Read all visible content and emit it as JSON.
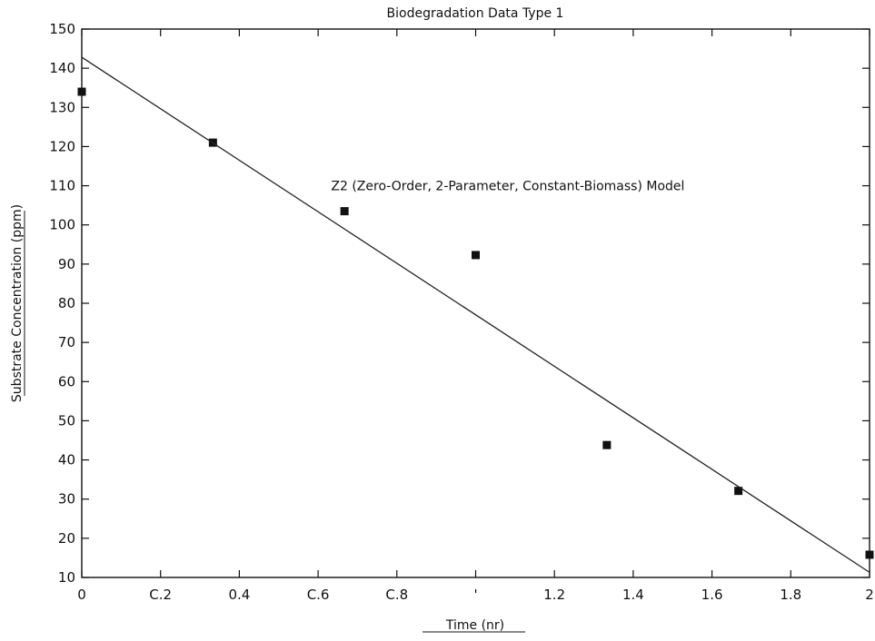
{
  "chart_data": {
    "type": "scatter",
    "title": "Biodegradation Data Type 1",
    "xlabel": "Time (nr)",
    "ylabel": "Substrate Concentration (ppm)",
    "xlim": [
      0,
      2
    ],
    "ylim": [
      10,
      150
    ],
    "x_ticks": [
      {
        "value": 0,
        "label": "0"
      },
      {
        "value": 0.2,
        "label": "C.2"
      },
      {
        "value": 0.4,
        "label": "0.4"
      },
      {
        "value": 0.6,
        "label": "C.6"
      },
      {
        "value": 0.8,
        "label": "C.8"
      },
      {
        "value": 1.0,
        "label": "'"
      },
      {
        "value": 1.2,
        "label": "1.2"
      },
      {
        "value": 1.4,
        "label": "1.4"
      },
      {
        "value": 1.6,
        "label": "1.6"
      },
      {
        "value": 1.8,
        "label": "1.8"
      },
      {
        "value": 2.0,
        "label": "2"
      }
    ],
    "y_ticks": [
      {
        "value": 10,
        "label": "10"
      },
      {
        "value": 20,
        "label": "20"
      },
      {
        "value": 30,
        "label": "30"
      },
      {
        "value": 40,
        "label": "40"
      },
      {
        "value": 50,
        "label": "50"
      },
      {
        "value": 60,
        "label": "60"
      },
      {
        "value": 70,
        "label": "70"
      },
      {
        "value": 80,
        "label": "80"
      },
      {
        "value": 90,
        "label": "90"
      },
      {
        "value": 100,
        "label": "100"
      },
      {
        "value": 110,
        "label": "110"
      },
      {
        "value": 120,
        "label": "120"
      },
      {
        "value": 130,
        "label": "130"
      },
      {
        "value": 140,
        "label": "140"
      },
      {
        "value": 150,
        "label": "150"
      }
    ],
    "grid": false,
    "series": [
      {
        "kind": "points",
        "marker": "square",
        "color": "#111111",
        "points": [
          {
            "x": 0,
            "y": 134
          },
          {
            "x": 0.333,
            "y": 121
          },
          {
            "x": 0.667,
            "y": 103.5
          },
          {
            "x": 1.0,
            "y": 92.3
          },
          {
            "x": 1.333,
            "y": 43.8
          },
          {
            "x": 1.667,
            "y": 32.1
          },
          {
            "x": 2.0,
            "y": 15.8
          }
        ]
      },
      {
        "kind": "line",
        "color": "#222222",
        "points": [
          {
            "x": 0,
            "y": 142.8
          },
          {
            "x": 2.0,
            "y": 11.3
          }
        ]
      }
    ],
    "annotation": {
      "text": "Z2 (Zero-Order, 2-Parameter, Constant-Biomass) Model",
      "x": 0.633,
      "y": 110
    }
  }
}
